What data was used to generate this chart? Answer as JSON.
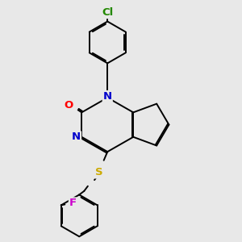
{
  "background_color": "#e8e8e8",
  "atom_colors": {
    "C": "#000000",
    "N": "#0000cc",
    "O": "#ff0000",
    "S": "#ccaa00",
    "Cl": "#228800",
    "F": "#cc00cc"
  },
  "bond_color": "#000000",
  "bond_width": 1.4,
  "dbo": 0.055,
  "font_size": 9.5
}
